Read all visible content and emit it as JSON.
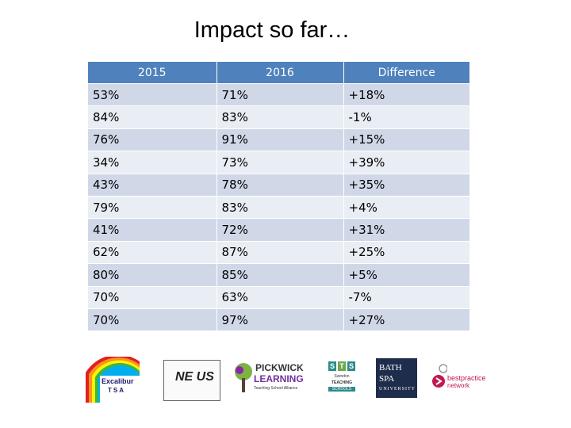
{
  "title": "Impact so far…",
  "table": {
    "headers": [
      "2015",
      "2016",
      "Difference"
    ],
    "rows": [
      [
        "53%",
        "71%",
        "+18%"
      ],
      [
        "84%",
        "83%",
        "-1%"
      ],
      [
        "76%",
        "91%",
        "+15%"
      ],
      [
        "34%",
        "73%",
        "+39%"
      ],
      [
        "43%",
        "78%",
        "+35%"
      ],
      [
        "79%",
        "83%",
        "+4%"
      ],
      [
        "41%",
        "72%",
        "+31%"
      ],
      [
        "62%",
        "87%",
        "+25%"
      ],
      [
        "80%",
        "85%",
        "+5%"
      ],
      [
        "70%",
        "63%",
        "-7%"
      ],
      [
        "70%",
        "97%",
        "+27%"
      ]
    ]
  },
  "logos": {
    "excalibur": {
      "line1": "Excalibur",
      "line2": "TSA"
    },
    "nexus": {
      "text": "NE US"
    },
    "pickwick": {
      "line1": "PICKWICK",
      "line2": "LEARNING",
      "line3": "Teaching School Alliance"
    },
    "sts": {
      "letters": [
        "S",
        "T",
        "S"
      ],
      "line1": "Swindon",
      "line2": "TEACHING",
      "line3": "SCHOOLS"
    },
    "bathspa": {
      "line1": "BATH",
      "line2": "SPA",
      "line3": "UNIVERSITY"
    },
    "bestpractice": {
      "line1": "bestpractice",
      "line2": "network"
    }
  },
  "colors": {
    "header": "#4f81bd",
    "row_odd": "#d0d8e8",
    "row_even": "#e9edf4",
    "sts_s": "#2e8b8b",
    "sts_t": "#6aa84f",
    "bath": "#1f2d4d",
    "best": "#c0184f"
  }
}
